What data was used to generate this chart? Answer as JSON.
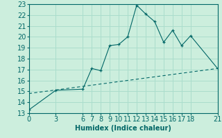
{
  "xlabel": "Humidex (Indice chaleur)",
  "ylabel": "",
  "bg_color": "#cceedd",
  "grid_color": "#aaddcc",
  "line_color": "#006666",
  "xlim": [
    0,
    21
  ],
  "ylim": [
    13,
    23
  ],
  "xticks": [
    0,
    3,
    6,
    7,
    8,
    9,
    10,
    11,
    12,
    13,
    14,
    15,
    16,
    17,
    18,
    21
  ],
  "yticks": [
    13,
    14,
    15,
    16,
    17,
    18,
    19,
    20,
    21,
    22,
    23
  ],
  "curve_x": [
    0,
    3,
    6,
    7,
    8,
    9,
    10,
    11,
    12,
    13,
    14,
    15,
    16,
    17,
    18,
    21
  ],
  "curve_y": [
    13.3,
    15.1,
    15.2,
    17.1,
    16.9,
    19.2,
    19.3,
    20.0,
    22.9,
    22.1,
    21.4,
    19.5,
    20.6,
    19.2,
    20.1,
    17.1
  ],
  "trend_x": [
    0,
    21
  ],
  "trend_y": [
    14.8,
    17.1
  ],
  "font_size": 7,
  "tick_font_size": 7
}
